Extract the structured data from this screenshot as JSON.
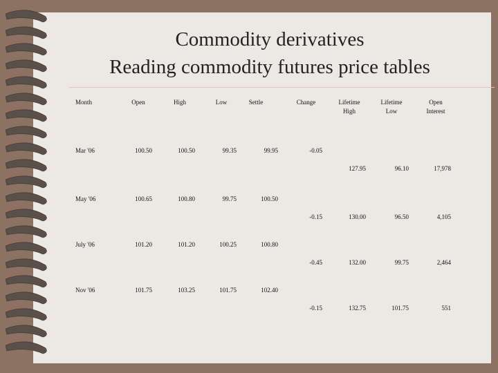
{
  "title": {
    "line1": "Commodity derivatives",
    "line2": "Reading commodity futures price tables"
  },
  "table": {
    "headers": {
      "month": "Month",
      "open": "Open",
      "high": "High",
      "low": "Low",
      "settle": "Settle",
      "change": "Change",
      "lifetime_high_1": "Lifetime",
      "lifetime_high_2": "High",
      "lifetime_low_1": "Lifetime",
      "lifetime_low_2": "Low",
      "open_interest_1": "Open",
      "open_interest_2": "Interest"
    },
    "rows": [
      {
        "month": "Mar '06",
        "open": "100.50",
        "high": "100.50",
        "low": "99.35",
        "settle": "99.95",
        "change": "-0.05",
        "lifetime_high": "127.95",
        "lifetime_low": "96.10",
        "open_interest": "17,978"
      },
      {
        "month": "May '06",
        "open": "100.65",
        "high": "100.80",
        "low": "99.75",
        "settle": "100.50",
        "change": "-0.15",
        "lifetime_high": "130.00",
        "lifetime_low": "96.50",
        "open_interest": "4,105"
      },
      {
        "month": "July '06",
        "open": "101.20",
        "high": "101.20",
        "low": "100.25",
        "settle": "100.80",
        "change": "-0.45",
        "lifetime_high": "132.00",
        "lifetime_low": "99.75",
        "open_interest": "2,464"
      },
      {
        "month": "Nov '06",
        "open": "101.75",
        "high": "103.25",
        "low": "101.75",
        "settle": "102.40",
        "change": "-0.15",
        "lifetime_high": "132.75",
        "lifetime_low": "101.75",
        "open_interest": "551"
      }
    ]
  }
}
